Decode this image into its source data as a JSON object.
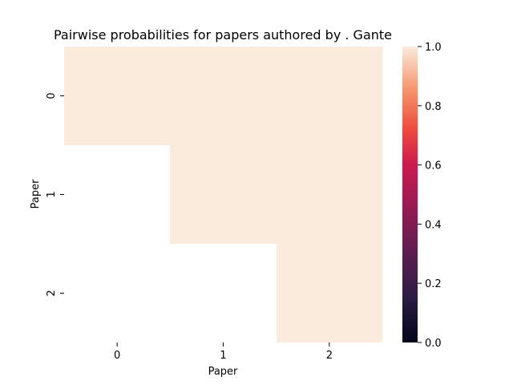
{
  "chart_data": {
    "type": "heatmap",
    "title": "Pairwise probabilities for papers authored by . Gante",
    "xlabel": "Paper",
    "ylabel": "Paper",
    "x_categories": [
      "0",
      "1",
      "2"
    ],
    "y_categories": [
      "0",
      "1",
      "2"
    ],
    "values": [
      [
        1.0,
        1.0,
        1.0
      ],
      [
        null,
        1.0,
        1.0
      ],
      [
        null,
        null,
        1.0
      ]
    ],
    "colorbar": {
      "range": [
        0.0,
        1.0
      ],
      "ticks": [
        "0.0",
        "0.2",
        "0.4",
        "0.6",
        "0.8",
        "1.0"
      ],
      "colormap": "rocket",
      "color_high": "#FAEBDD",
      "color_low": "#03051A"
    },
    "grid": false
  }
}
